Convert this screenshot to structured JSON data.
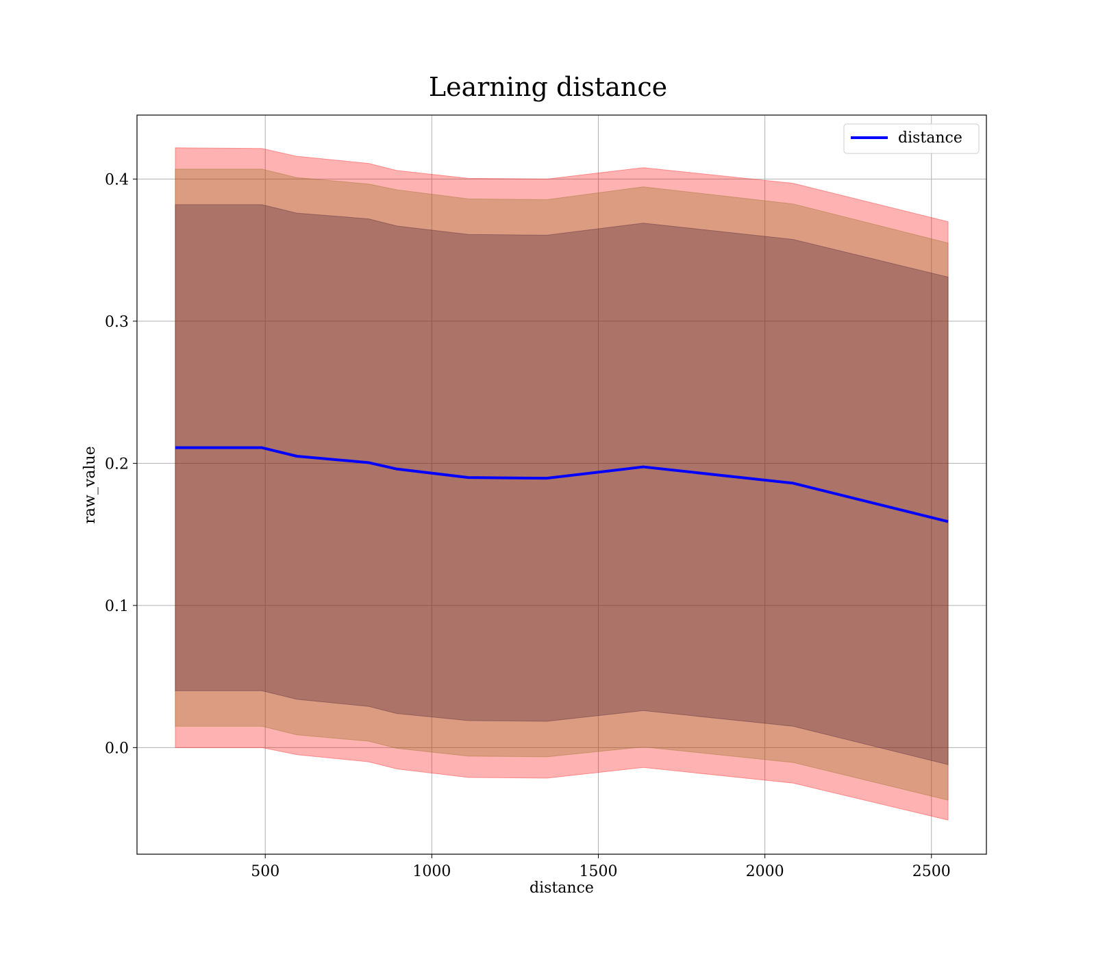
{
  "chart_data": {
    "type": "line",
    "title": "Learning distance",
    "xlabel": "distance",
    "ylabel": "raw_value",
    "xlim": [
      115,
      2665
    ],
    "ylim": [
      -0.075,
      0.445
    ],
    "xticks": [
      500,
      1000,
      1500,
      2000,
      2500
    ],
    "yticks": [
      0.0,
      0.1,
      0.2,
      0.3,
      0.4
    ],
    "grid": true,
    "legend": {
      "position": "top-right",
      "entries": [
        "distance"
      ]
    },
    "colors": {
      "line": "#0000ff",
      "band_outer": "#ff0000",
      "band_mid": "#8b6914",
      "band_inner": "#401830",
      "grid": "#b0b0b0"
    },
    "x": [
      230,
      490,
      595,
      810,
      895,
      1110,
      1345,
      1635,
      2085,
      2550
    ],
    "series": [
      {
        "name": "distance",
        "values": [
          0.211,
          0.211,
          0.205,
          0.2005,
          0.196,
          0.19,
          0.1895,
          0.1975,
          0.186,
          0.159
        ]
      }
    ],
    "bands": [
      {
        "level": "outer",
        "lower": [
          0.0,
          0.0,
          -0.005,
          -0.01,
          -0.015,
          -0.021,
          -0.0215,
          -0.014,
          -0.025,
          -0.051
        ],
        "upper": [
          0.422,
          0.4215,
          0.416,
          0.411,
          0.406,
          0.4005,
          0.4,
          0.408,
          0.397,
          0.37
        ]
      },
      {
        "level": "mid",
        "lower": [
          0.015,
          0.015,
          0.009,
          0.0045,
          -0.0005,
          -0.006,
          -0.0065,
          0.0005,
          -0.0105,
          -0.037
        ]
      },
      {
        "level": "inner",
        "lower": [
          0.04,
          0.04,
          0.034,
          0.029,
          0.024,
          0.019,
          0.0185,
          0.026,
          0.015,
          -0.012
        ],
        "upper": [
          0.382,
          0.382,
          0.376,
          0.372,
          0.367,
          0.361,
          0.3605,
          0.369,
          0.3575,
          0.331
        ]
      }
    ]
  }
}
